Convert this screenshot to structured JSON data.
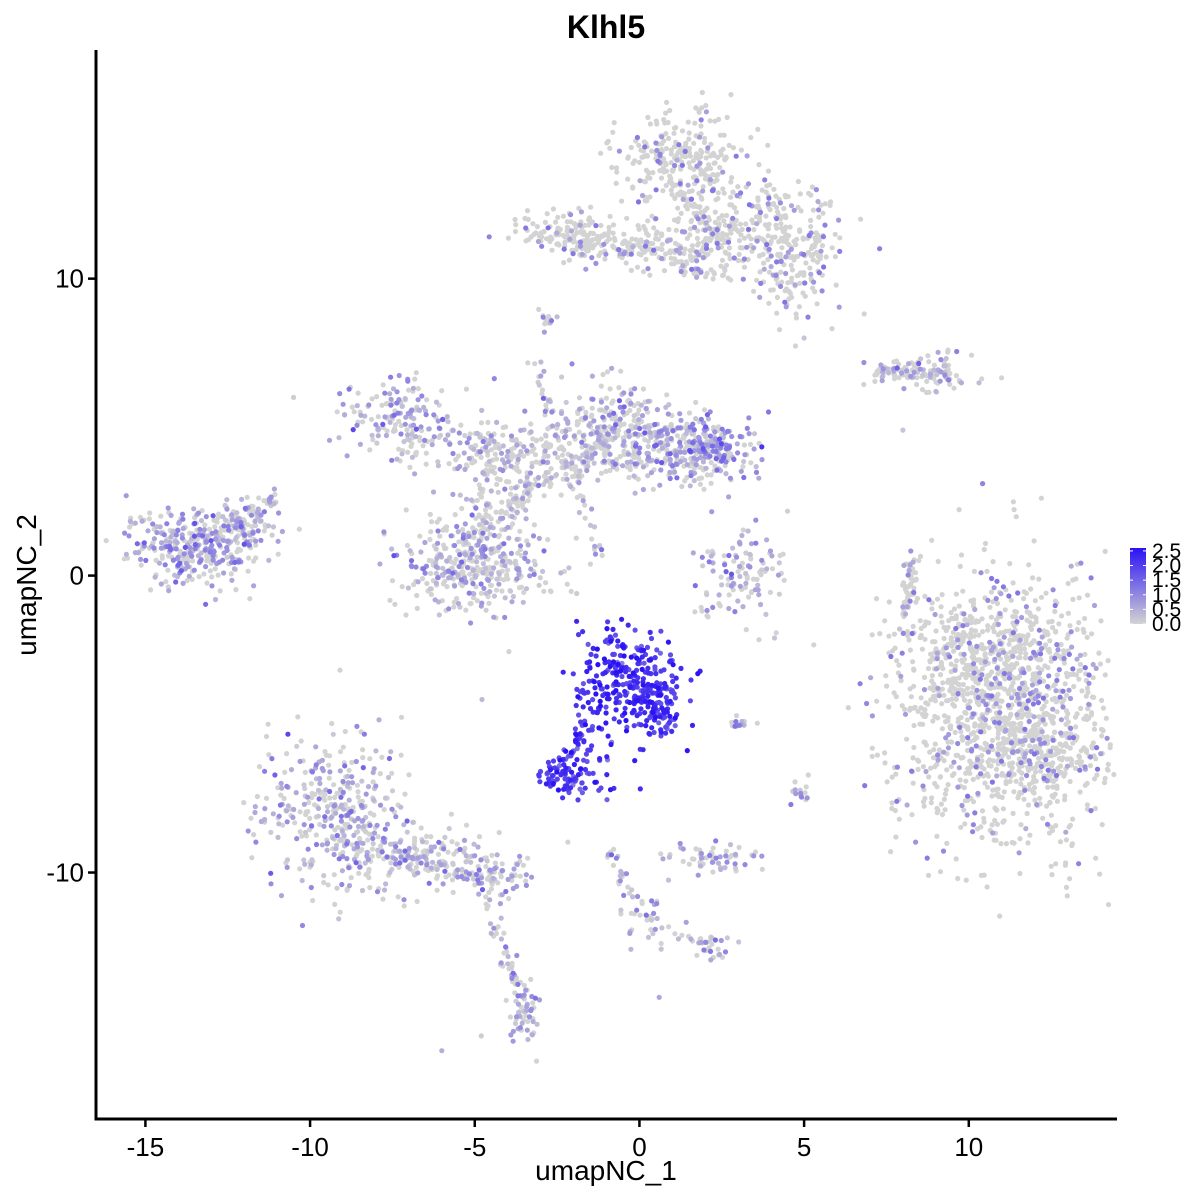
{
  "chart_data": {
    "type": "scatter",
    "title": "Klhl5",
    "xlabel": "umapNC_1",
    "ylabel": "umapNC_2",
    "xlim": [
      -16.5,
      14.5
    ],
    "ylim": [
      -18.3,
      17.7
    ],
    "x_ticks": [
      -15,
      -10,
      -5,
      0,
      5,
      10
    ],
    "x_tick_labels": [
      "-15",
      "-10",
      "-5",
      "0",
      "5",
      "10"
    ],
    "y_ticks": [
      10,
      0,
      -10
    ],
    "y_tick_labels": [
      "10",
      "0",
      "-10"
    ],
    "grid": false,
    "legend": {
      "placement": "right",
      "type": "colorbar",
      "min": 0.0,
      "max": 2.6,
      "ticks": [
        2.5,
        2.0,
        1.5,
        1.0,
        0.5,
        0.0
      ],
      "tick_labels": [
        "2.5",
        "2.0",
        "1.5",
        "1.0",
        "0.5",
        "0.0"
      ],
      "low_color": "#d3d3d3",
      "high_color": "#2b12f5"
    },
    "colors": {
      "low": "#d3d3d3",
      "high": "#2b12f5"
    },
    "series": [
      {
        "clusters": [
          {
            "x": 11.0,
            "y": -4.5,
            "sx": 1.6,
            "sy": 2.3,
            "n": 1100,
            "expr": 0.15
          },
          {
            "x": 10.5,
            "y": -2.5,
            "sx": 1.3,
            "sy": 1.0,
            "n": 250,
            "expr": 0.15
          },
          {
            "x": 12.0,
            "y": -6.0,
            "sx": 0.9,
            "sy": 0.9,
            "n": 200,
            "expr": 0.15
          },
          {
            "x": 1.3,
            "y": 14.0,
            "sx": 0.9,
            "sy": 0.8,
            "n": 260,
            "expr": 0.2
          },
          {
            "x": 3.2,
            "y": 12.0,
            "sx": 1.3,
            "sy": 0.8,
            "n": 220,
            "expr": 0.2
          },
          {
            "x": 4.8,
            "y": 10.5,
            "sx": 0.6,
            "sy": 0.9,
            "n": 160,
            "expr": 0.25
          },
          {
            "x": -2.0,
            "y": 11.5,
            "sx": 0.9,
            "sy": 0.4,
            "n": 140,
            "expr": 0.15
          },
          {
            "x": 0.7,
            "y": 11.0,
            "sx": 1.2,
            "sy": 0.4,
            "n": 120,
            "expr": 0.15
          },
          {
            "x": -0.8,
            "y": 5.0,
            "sx": 0.9,
            "sy": 0.8,
            "n": 220,
            "expr": 0.45
          },
          {
            "x": 2.0,
            "y": 4.3,
            "sx": 0.8,
            "sy": 0.5,
            "n": 200,
            "expr": 0.75
          },
          {
            "x": 0.8,
            "y": 4.2,
            "sx": 1.2,
            "sy": 0.6,
            "n": 200,
            "expr": 0.5
          },
          {
            "x": -4.5,
            "y": 4.3,
            "sx": 1.5,
            "sy": 0.5,
            "n": 180,
            "expr": 0.35
          },
          {
            "x": -7.3,
            "y": 5.4,
            "sx": 0.8,
            "sy": 0.6,
            "n": 140,
            "expr": 0.6
          },
          {
            "x": -4.5,
            "y": 2.0,
            "sx": 0.6,
            "sy": 1.3,
            "n": 140,
            "expr": 0.3
          },
          {
            "x": -5.0,
            "y": 0.3,
            "sx": 1.2,
            "sy": 0.8,
            "n": 320,
            "expr": 0.45
          },
          {
            "x": -13.5,
            "y": 1.0,
            "sx": 1.0,
            "sy": 0.7,
            "n": 300,
            "expr": 0.65
          },
          {
            "x": -12.0,
            "y": 1.6,
            "sx": 0.6,
            "sy": 0.5,
            "n": 80,
            "expr": 0.5
          },
          {
            "x": -9.2,
            "y": -8.2,
            "sx": 1.1,
            "sy": 1.3,
            "n": 380,
            "expr": 0.55
          },
          {
            "x": -6.5,
            "y": -9.5,
            "sx": 1.2,
            "sy": 0.5,
            "n": 140,
            "expr": 0.45
          },
          {
            "x": -4.3,
            "y": -10.2,
            "sx": 0.6,
            "sy": 0.4,
            "n": 60,
            "expr": 0.55
          },
          {
            "x": -3.5,
            "y": -14.8,
            "sx": 0.2,
            "sy": 0.6,
            "n": 50,
            "expr": 0.55
          },
          {
            "x": -0.4,
            "y": -3.6,
            "sx": 0.7,
            "sy": 0.8,
            "n": 280,
            "expr": 2.15
          },
          {
            "x": 0.6,
            "y": -4.5,
            "sx": 0.4,
            "sy": 0.5,
            "n": 70,
            "expr": 2.0
          },
          {
            "x": -1.6,
            "y": -6.2,
            "sx": 0.4,
            "sy": 0.6,
            "n": 40,
            "expr": 2.0
          },
          {
            "x": -2.4,
            "y": -6.8,
            "sx": 0.4,
            "sy": 0.3,
            "n": 60,
            "expr": 2.0
          },
          {
            "x": 3.0,
            "y": 0.0,
            "sx": 0.7,
            "sy": 0.8,
            "n": 110,
            "expr": 0.5
          },
          {
            "x": 2.3,
            "y": -9.5,
            "sx": 0.7,
            "sy": 0.25,
            "n": 60,
            "expr": 0.55
          },
          {
            "x": 0.2,
            "y": -11.5,
            "sx": 0.4,
            "sy": 0.5,
            "n": 30,
            "expr": 0.5
          },
          {
            "x": 2.2,
            "y": -12.5,
            "sx": 0.3,
            "sy": 0.2,
            "n": 20,
            "expr": 0.6
          },
          {
            "x": 8.5,
            "y": 6.8,
            "sx": 0.8,
            "sy": 0.3,
            "n": 80,
            "expr": 0.3
          },
          {
            "x": 7.6,
            "y": 6.9,
            "sx": 0.4,
            "sy": 0.2,
            "n": 25,
            "expr": 0.3
          },
          {
            "x": 8.2,
            "y": -0.5,
            "sx": 0.15,
            "sy": 0.7,
            "n": 25,
            "expr": 0.2
          },
          {
            "x": -2.8,
            "y": 8.6,
            "sx": 0.15,
            "sy": 0.2,
            "n": 12,
            "expr": 0.5
          },
          {
            "x": 3.0,
            "y": -5.0,
            "sx": 0.3,
            "sy": 0.1,
            "n": 12,
            "expr": 0.4
          },
          {
            "x": 5.0,
            "y": -7.3,
            "sx": 0.2,
            "sy": 0.2,
            "n": 15,
            "expr": 0.4
          }
        ],
        "bridges": [
          {
            "from": [
              -1.6,
              -5.0
            ],
            "to": [
              -2.3,
              -6.7
            ],
            "n": 35,
            "expr": 2.0
          },
          {
            "from": [
              -3.3,
              7.5
            ],
            "to": [
              -1.2,
              0.7
            ],
            "n": 60,
            "expr": 0.3
          },
          {
            "from": [
              -3.8,
              2.0
            ],
            "to": [
              -2.8,
              4.5
            ],
            "n": 40,
            "expr": 0.35
          },
          {
            "from": [
              -2.2,
              11.5
            ],
            "to": [
              0.5,
              11.0
            ],
            "n": 40,
            "expr": 0.2
          },
          {
            "from": [
              1.3,
              13.0
            ],
            "to": [
              2.5,
              11.0
            ],
            "n": 40,
            "expr": 0.2
          },
          {
            "from": [
              0.7,
              10.5
            ],
            "to": [
              2.9,
              9.9
            ],
            "n": 30,
            "expr": 0.2
          },
          {
            "from": [
              -2.5,
              3.5
            ],
            "to": [
              -5.2,
              1.2
            ],
            "n": 60,
            "expr": 0.35
          },
          {
            "from": [
              -13.0,
              1.2
            ],
            "to": [
              -11.0,
              2.7
            ],
            "n": 50,
            "expr": 0.5
          },
          {
            "from": [
              -8.0,
              -9.3
            ],
            "to": [
              -4.3,
              -10.3
            ],
            "n": 60,
            "expr": 0.5
          },
          {
            "from": [
              -4.5,
              -11.0
            ],
            "to": [
              -3.6,
              -14.5
            ],
            "n": 40,
            "expr": 0.4
          },
          {
            "from": [
              -0.9,
              -9.2
            ],
            "to": [
              0.0,
              -11.5
            ],
            "n": 25,
            "expr": 0.4
          },
          {
            "from": [
              0.4,
              -11.8
            ],
            "to": [
              2.2,
              -12.5
            ],
            "n": 20,
            "expr": 0.35
          },
          {
            "from": [
              8.0,
              -1.5
            ],
            "to": [
              8.4,
              1.0
            ],
            "n": 25,
            "expr": 0.2
          },
          {
            "from": [
              7.3,
              6.9
            ],
            "to": [
              9.5,
              6.7
            ],
            "n": 30,
            "expr": 0.3
          },
          {
            "from": [
              -0.5,
              5.5
            ],
            "to": [
              -2.2,
              3.0
            ],
            "n": 40,
            "expr": 0.4
          }
        ],
        "singles": [
          {
            "x": -10.5,
            "y": 6.0,
            "expr": 0.1
          },
          {
            "x": -4.8,
            "y": -15.5,
            "expr": 0.1
          },
          {
            "x": -6.0,
            "y": -16.0,
            "expr": 0.5
          },
          {
            "x": 0.6,
            "y": -14.2,
            "expr": 0.6
          },
          {
            "x": 8.0,
            "y": 4.9,
            "expr": 0.2
          },
          {
            "x": 7.9,
            "y": -1.8,
            "expr": 0.2
          },
          {
            "x": 4.1,
            "y": -2.1,
            "expr": 0.2
          },
          {
            "x": 9.0,
            "y": 6.2,
            "expr": 0.4
          },
          {
            "x": 5.0,
            "y": 8.0,
            "expr": 0.2
          },
          {
            "x": 3.3,
            "y": 1.5,
            "expr": 0.3
          }
        ]
      }
    ]
  }
}
